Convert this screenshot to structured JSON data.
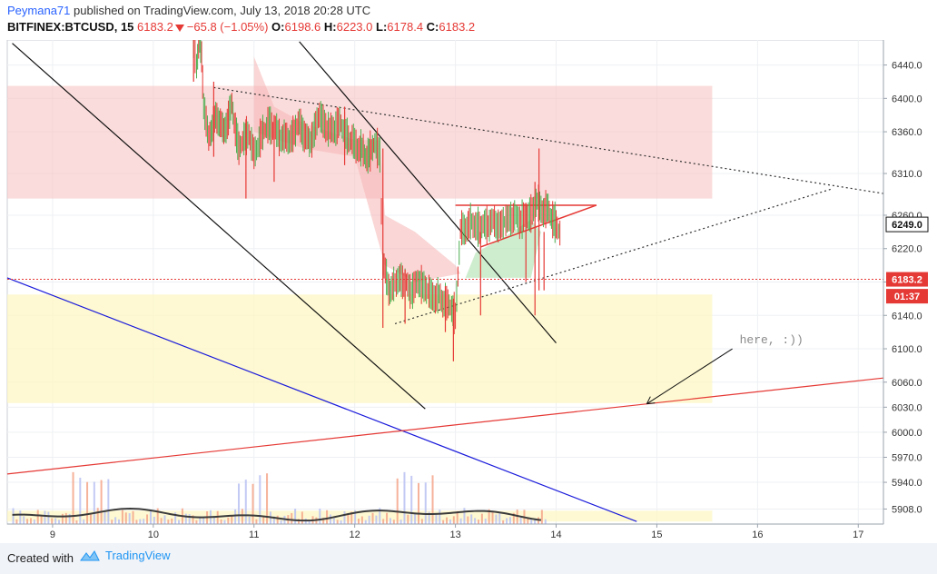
{
  "header": {
    "author": "Peymana71",
    "published_text": " published on TradingView.com, July 13, 2018 20:28 UTC",
    "symbol": "BITFINEX:BTCUSD, 15",
    "last": "6183.2",
    "change": "−65.8 (−1.05%)",
    "o_label": "O:",
    "o_value": "6198.6",
    "h_label": "H:",
    "h_value": "6223.0",
    "l_label": "L:",
    "l_value": "6178.4",
    "c_label": "C:",
    "c_value": "6183.2"
  },
  "footer": {
    "created_with": "Created with",
    "brand": "TradingView"
  },
  "colors": {
    "up": "#4caf50",
    "down": "#e53935",
    "red_zone": "#f8c5c5",
    "yellow_zone": "#fdf7c3",
    "cloud_red": "#f5b4b4",
    "cloud_green": "#b9e6b9",
    "price_line": "#e53935",
    "blue_line": "#1a1adb"
  },
  "chart_data": {
    "type": "candlestick",
    "ylim": [
      5890,
      6470
    ],
    "xlim": [
      8.55,
      17.25
    ],
    "y_ticks": [
      5908.0,
      5940.0,
      5970.0,
      6000.0,
      6030.0,
      6060.0,
      6100.0,
      6140.0,
      6180.0,
      6220.0,
      6260.0,
      6310.0,
      6360.0,
      6400.0,
      6440.0
    ],
    "y_tick_labels": [
      "5908.0",
      "5940.0",
      "5970.0",
      "6000.0",
      "6030.0",
      "6060.0",
      "6100.0",
      "6140.0",
      "6180.0",
      "6220.0",
      "6260.0",
      "6310.0",
      "6360.0",
      "6400.0",
      "6440.0"
    ],
    "x_ticks": [
      9,
      10,
      11,
      12,
      13,
      14,
      15,
      16,
      17
    ],
    "x_tick_labels": [
      "9",
      "10",
      "11",
      "12",
      "13",
      "14",
      "15",
      "16",
      "17"
    ],
    "price_labels": [
      {
        "value": 6249.0,
        "text": "6249.0",
        "style": "dark"
      },
      {
        "value": 6183.2,
        "text": "6183.2",
        "style": "red"
      },
      {
        "value": 6163.0,
        "text": "01:37",
        "style": "red"
      }
    ],
    "current_price": 6183.2,
    "price_path": [
      [
        10.4,
        6470
      ],
      [
        10.43,
        6440
      ],
      [
        10.46,
        6465
      ],
      [
        10.48,
        6450
      ],
      [
        10.5,
        6395
      ],
      [
        10.55,
        6350
      ],
      [
        10.62,
        6380
      ],
      [
        10.7,
        6360
      ],
      [
        10.78,
        6390
      ],
      [
        10.85,
        6340
      ],
      [
        10.95,
        6360
      ],
      [
        11.0,
        6330
      ],
      [
        11.05,
        6350
      ],
      [
        11.15,
        6370
      ],
      [
        11.25,
        6355
      ],
      [
        11.35,
        6350
      ],
      [
        11.45,
        6370
      ],
      [
        11.55,
        6345
      ],
      [
        11.65,
        6380
      ],
      [
        11.75,
        6360
      ],
      [
        11.85,
        6370
      ],
      [
        11.95,
        6350
      ],
      [
        12.05,
        6340
      ],
      [
        12.12,
        6330
      ],
      [
        12.2,
        6345
      ],
      [
        12.25,
        6335
      ],
      [
        12.28,
        6200
      ],
      [
        12.35,
        6170
      ],
      [
        12.45,
        6185
      ],
      [
        12.55,
        6170
      ],
      [
        12.65,
        6180
      ],
      [
        12.75,
        6165
      ],
      [
        12.85,
        6160
      ],
      [
        12.95,
        6150
      ],
      [
        13.0,
        6140
      ],
      [
        13.05,
        6240
      ],
      [
        13.15,
        6250
      ],
      [
        13.25,
        6245
      ],
      [
        13.35,
        6252
      ],
      [
        13.45,
        6248
      ],
      [
        13.55,
        6258
      ],
      [
        13.65,
        6255
      ],
      [
        13.75,
        6262
      ],
      [
        13.8,
        6275
      ],
      [
        13.85,
        6268
      ],
      [
        13.92,
        6265
      ],
      [
        14.0,
        6249
      ],
      [
        14.05,
        6233
      ]
    ],
    "spikes": [
      [
        10.4,
        6420,
        6470
      ],
      [
        10.6,
        6330,
        6420
      ],
      [
        10.92,
        6280,
        6375
      ],
      [
        11.2,
        6300,
        6380
      ],
      [
        11.9,
        6320,
        6390
      ],
      [
        12.28,
        6125,
        6340
      ],
      [
        12.5,
        6130,
        6195
      ],
      [
        12.9,
        6120,
        6175
      ],
      [
        12.98,
        6085,
        6160
      ],
      [
        13.25,
        6140,
        6240
      ],
      [
        13.7,
        6180,
        6275
      ],
      [
        13.79,
        6140,
        6300
      ],
      [
        13.83,
        6170,
        6340
      ],
      [
        13.88,
        6170,
        6240
      ]
    ],
    "zones": [
      {
        "x0": 8.55,
        "x1": 15.55,
        "y0": 6280,
        "y1": 6415,
        "color": "red"
      },
      {
        "x0": 8.55,
        "x1": 15.55,
        "y0": 6035,
        "y1": 6165,
        "color": "yellow"
      },
      {
        "x0": 8.55,
        "x1": 15.55,
        "y0": 5893,
        "y1": 5906,
        "color": "yellow"
      }
    ],
    "trend_lines": [
      {
        "p1": [
          8.6,
          6466
        ],
        "p2": [
          12.7,
          6028
        ],
        "style": "black"
      },
      {
        "p1": [
          11.45,
          6468
        ],
        "p2": [
          14.0,
          6107
        ],
        "style": "black"
      },
      {
        "p1": [
          8.55,
          6185
        ],
        "p2": [
          14.8,
          5893
        ],
        "style": "blue"
      },
      {
        "p1": [
          8.55,
          5950
        ],
        "p2": [
          17.25,
          6065
        ],
        "style": "red"
      },
      {
        "p1": [
          10.6,
          6413
        ],
        "p2": [
          17.25,
          6286
        ],
        "style": "dotted"
      },
      {
        "p1": [
          12.4,
          6130
        ],
        "p2": [
          16.75,
          6292
        ],
        "style": "dotted"
      },
      {
        "p1": [
          13.0,
          6272
        ],
        "p2": [
          14.4,
          6272
        ],
        "style": "redthin"
      },
      {
        "p1": [
          13.25,
          6222
        ],
        "p2": [
          14.4,
          6272
        ],
        "style": "redthin"
      }
    ],
    "annotation": {
      "text": "here, :))",
      "x": 15.75,
      "y": 6102
    },
    "arrow": {
      "from": [
        15.75,
        6100
      ],
      "to": [
        14.9,
        6034
      ]
    }
  }
}
